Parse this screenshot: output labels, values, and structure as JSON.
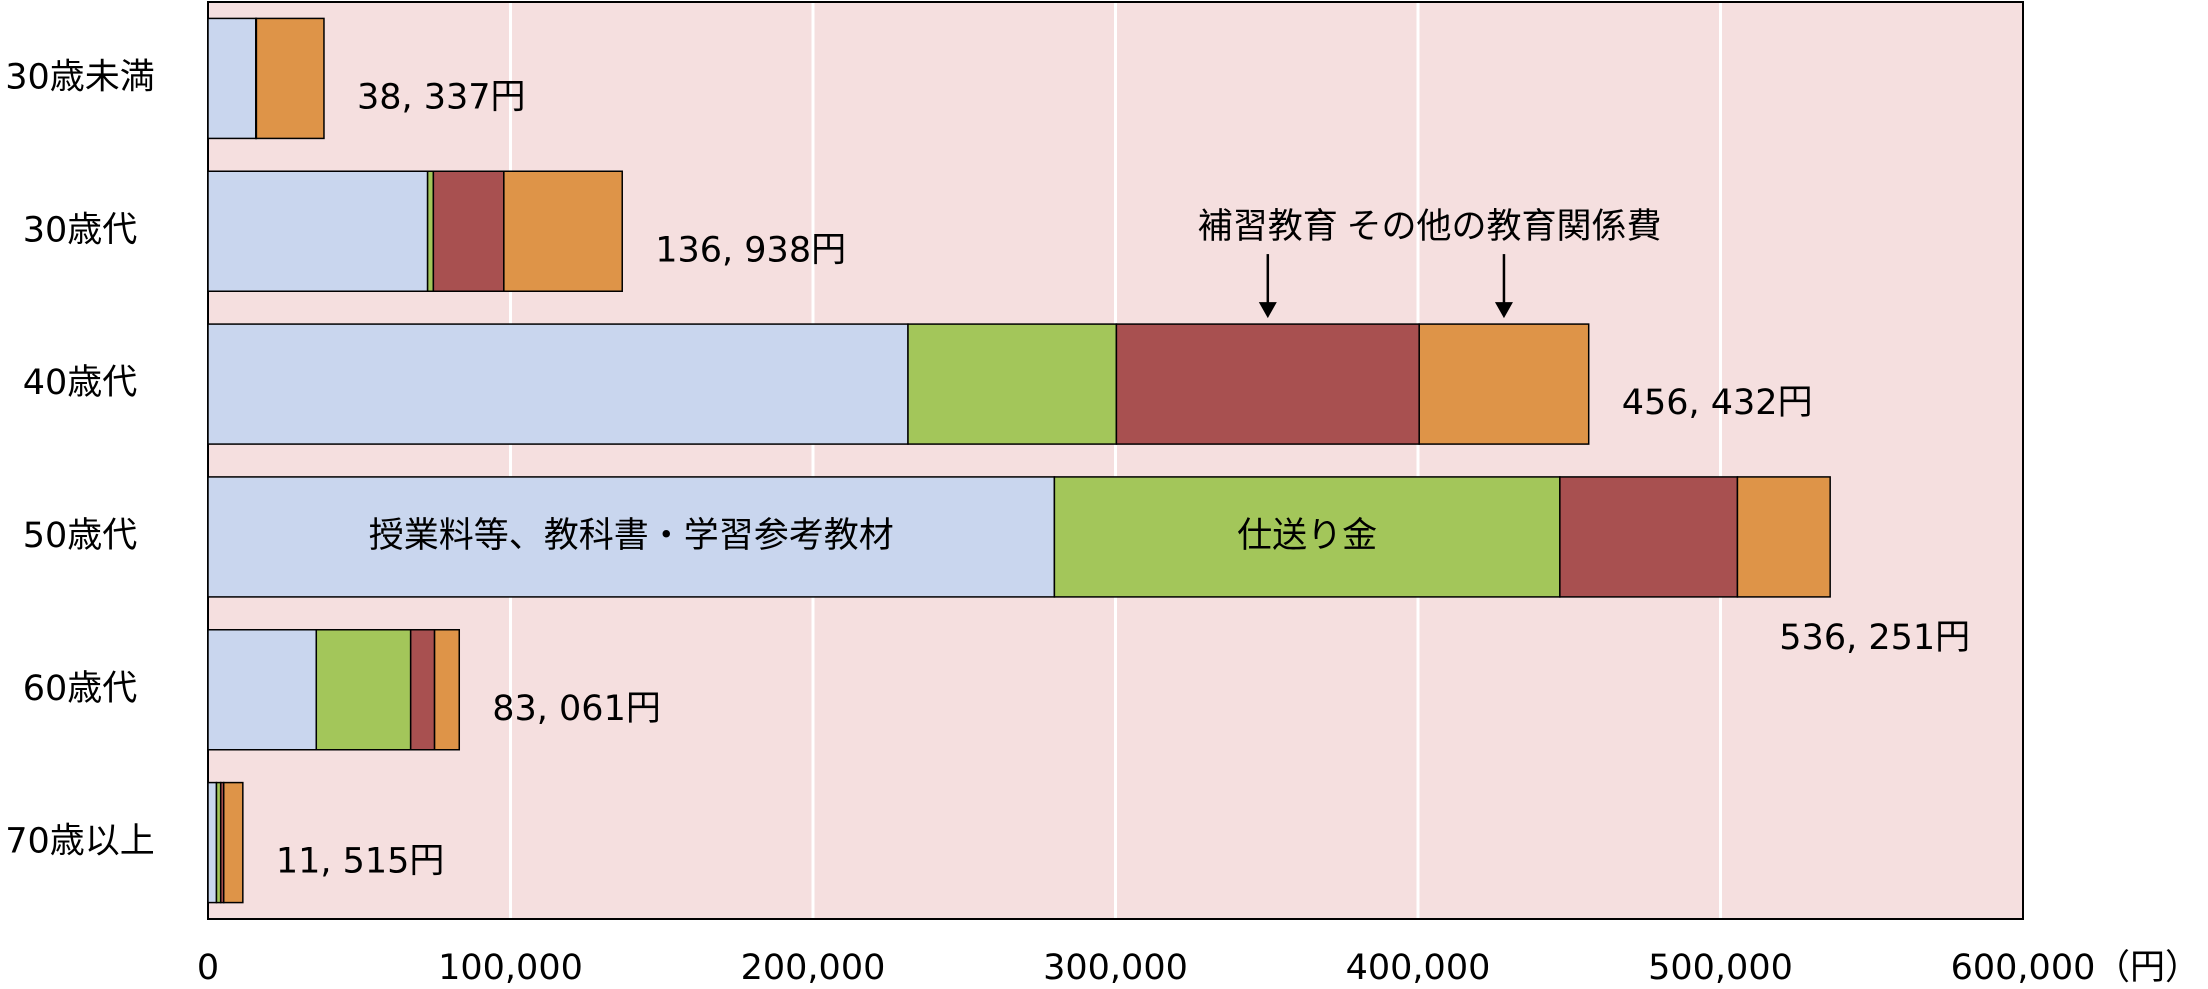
{
  "chart_data": {
    "type": "stacked-bar-horizontal",
    "categories": [
      "30歳未満",
      "30歳代",
      "40歳代",
      "50歳代",
      "60歳代",
      "70歳以上"
    ],
    "series": [
      {
        "name": "授業料等、教科書・学習参考教材",
        "color": "#c9d6ee",
        "values": [
          15800,
          72600,
          231400,
          279800,
          35800,
          2800
        ]
      },
      {
        "name": "仕送り金",
        "color": "#a3c65a",
        "values": [
          0,
          1900,
          68900,
          167100,
          31200,
          1400
        ]
      },
      {
        "name": "補習教育",
        "color": "#a85050",
        "values": [
          200,
          23300,
          100100,
          58700,
          7900,
          1000
        ]
      },
      {
        "name": "その他の教育関係費",
        "color": "#de9448",
        "values": [
          22337,
          39138,
          56032,
          30651,
          8161,
          6315
        ]
      }
    ],
    "totals": [
      38337,
      136938,
      456432,
      536251,
      83061,
      11515
    ],
    "total_labels": [
      "38, 337円",
      "136, 938円",
      "456, 432円",
      "536, 251円",
      "83, 061円",
      "11, 515円"
    ],
    "xlim": [
      0,
      600000
    ],
    "xticks": [
      0,
      {
        "value": 100000,
        "label": "100,000"
      },
      {
        "value": 200000,
        "label": "200,000"
      },
      {
        "value": 300000,
        "label": "300,000"
      },
      {
        "value": 400000,
        "label": "400,000"
      },
      {
        "value": 500000,
        "label": "500,000"
      },
      {
        "value": 600000,
        "label": "600,000"
      }
    ],
    "x_unit": "（円）",
    "grid": true,
    "plot_background": "#f5dfdf"
  }
}
